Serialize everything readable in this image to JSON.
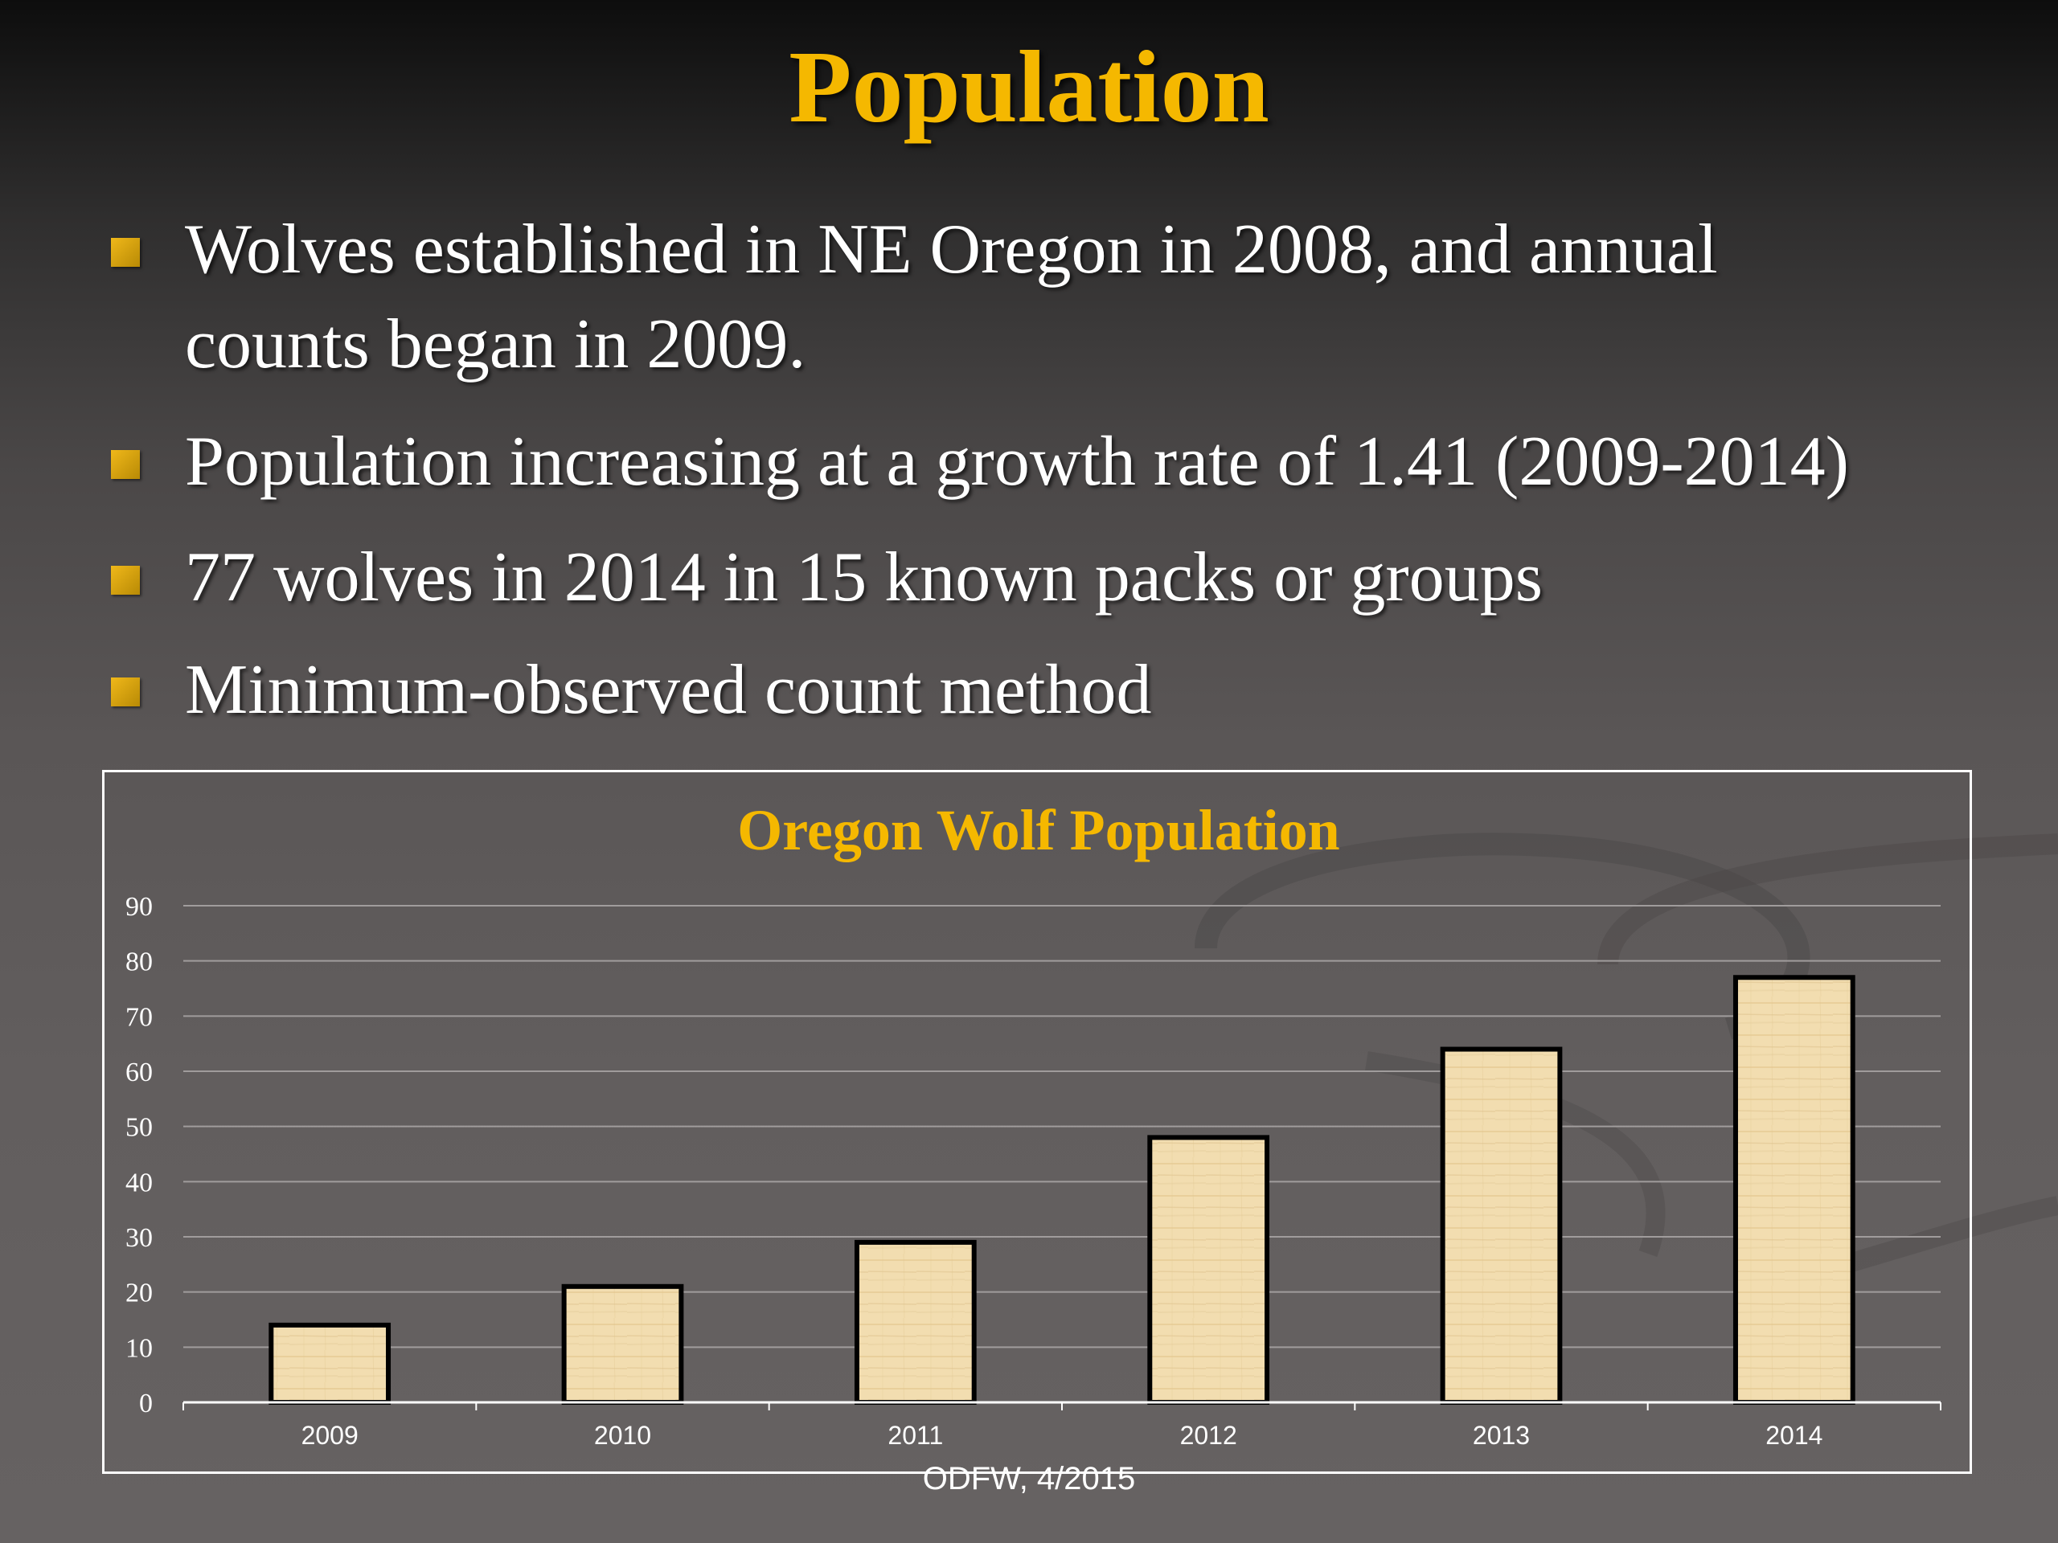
{
  "slide": {
    "title": "Population",
    "bullets": [
      {
        "lines": [
          "Wolves established in NE Oregon in 2008, and annual",
          "counts began in 2009."
        ]
      },
      {
        "lines": [
          "Population increasing at a growth rate of 1.41 (2009-2014)"
        ]
      },
      {
        "lines": [
          "77 wolves in 2014 in 15 known packs or groups"
        ]
      },
      {
        "lines": [
          "Minimum-observed count method"
        ]
      }
    ],
    "source_note": "ODFW, 4/2015"
  },
  "colors": {
    "title": "#f5b800",
    "chart_title": "#f5b800",
    "bullet": "#e0a80f",
    "bar_fill": "#f2ddb0",
    "bar_outline": "#000000",
    "gridline": "#a09c9c"
  },
  "chart_data": {
    "type": "bar",
    "title": "Oregon Wolf Population",
    "xlabel": "",
    "ylabel": "",
    "categories": [
      "2009",
      "2010",
      "2011",
      "2012",
      "2013",
      "2014"
    ],
    "values": [
      14,
      21,
      29,
      48,
      64,
      77
    ],
    "ylim": [
      0,
      90
    ],
    "yticks": [
      "0",
      "10",
      "20",
      "30",
      "40",
      "50",
      "60",
      "70",
      "80",
      "90"
    ],
    "grid": true,
    "legend": "none"
  }
}
